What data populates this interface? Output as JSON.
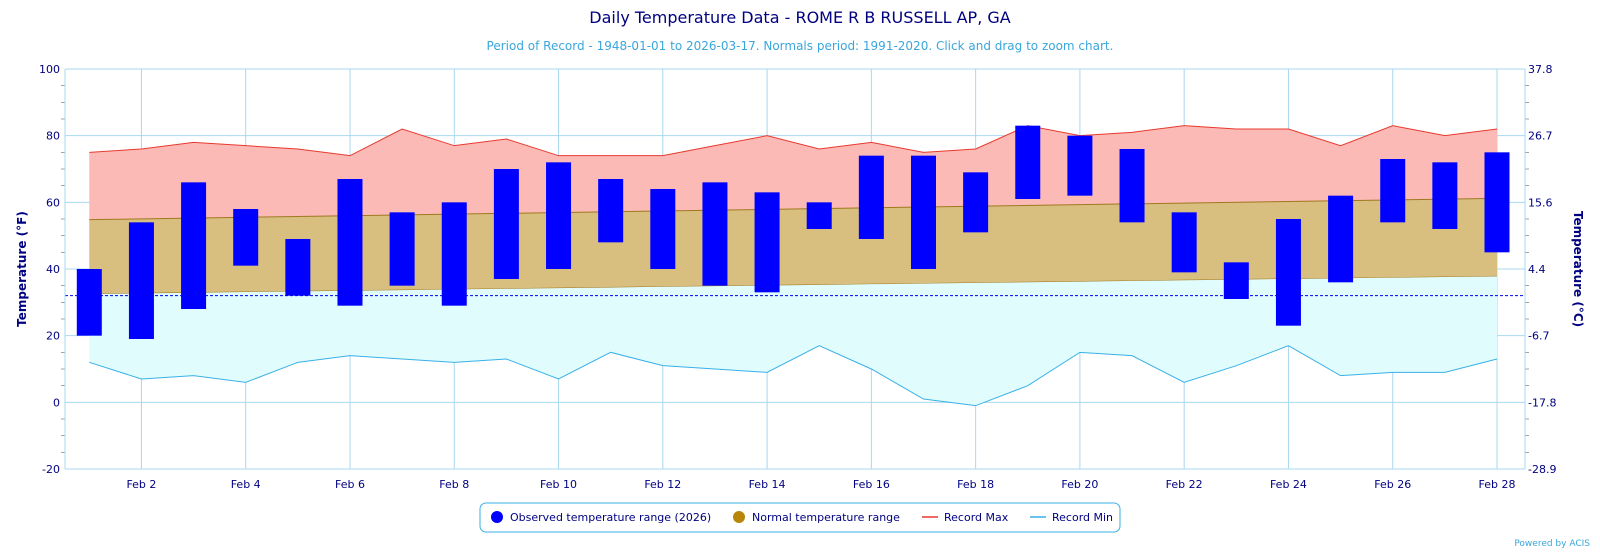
{
  "chart_data": {
    "type": "bar",
    "title": "Daily Temperature Data - ROME R B RUSSELL AP, GA",
    "subtitle": "Period of Record - 1948-01-01 to 2026-03-17. Normals period: 1991-2020. Click and drag to zoom chart.",
    "ylabel_left": "Temperature (°F)",
    "ylabel_right": "Temperature (°C)",
    "ylim": [
      -20,
      100
    ],
    "xlim": [
      1,
      28
    ],
    "yticks_left": [
      100,
      80,
      60,
      40,
      20,
      0,
      -20
    ],
    "yticks_right": [
      "37.8",
      "26.7",
      "15.6",
      "4.4",
      "-6.7",
      "-17.8",
      "-28.9"
    ],
    "x_tick_days": [
      2,
      4,
      6,
      8,
      10,
      12,
      14,
      16,
      18,
      20,
      22,
      24,
      26,
      28
    ],
    "x_tick_labels": [
      "Feb 2",
      "Feb 4",
      "Feb 6",
      "Feb 8",
      "Feb 10",
      "Feb 12",
      "Feb 14",
      "Feb 16",
      "Feb 18",
      "Feb 20",
      "Feb 22",
      "Feb 24",
      "Feb 26",
      "Feb 28"
    ],
    "freezing_line": 32,
    "grid": true,
    "legend_position": "bottom-center",
    "days": [
      1,
      2,
      3,
      4,
      5,
      6,
      7,
      8,
      9,
      10,
      11,
      12,
      13,
      14,
      15,
      16,
      17,
      18,
      19,
      20,
      21,
      22,
      23,
      24,
      25,
      26,
      27,
      28
    ],
    "observed_low": [
      20,
      19,
      28,
      41,
      32,
      29,
      35,
      29,
      37,
      40,
      48,
      40,
      35,
      33,
      52,
      49,
      40,
      51,
      61,
      62,
      54,
      39,
      31,
      23,
      36,
      54,
      52,
      45
    ],
    "observed_high": [
      40,
      54,
      66,
      58,
      49,
      67,
      57,
      60,
      70,
      72,
      67,
      64,
      66,
      63,
      60,
      74,
      74,
      69,
      83,
      80,
      76,
      57,
      42,
      55,
      62,
      73,
      72,
      75
    ],
    "normal_low_start": 32.5,
    "normal_low_end": 37.8,
    "normal_high_start": 54.8,
    "normal_high_end": 61.2,
    "record_max": [
      75,
      76,
      78,
      77,
      76,
      74,
      82,
      77,
      79,
      74,
      74,
      74,
      77,
      80,
      76,
      78,
      75,
      76,
      83,
      80,
      81,
      83,
      82,
      82,
      77,
      83,
      80,
      82
    ],
    "record_min": [
      12,
      7,
      8,
      6,
      12,
      14,
      13,
      12,
      13,
      7,
      15,
      11,
      10,
      9,
      17,
      10,
      1,
      -1,
      5,
      15,
      14,
      6,
      11,
      17,
      8,
      9,
      9,
      13
    ],
    "legend": [
      {
        "label": "Observed temperature range (2026)",
        "marker": "circle",
        "color": "#0000ff"
      },
      {
        "label": "Normal temperature range",
        "marker": "circle",
        "color": "#b8860b"
      },
      {
        "label": "Record Max",
        "marker": "line",
        "color": "#e8392e"
      },
      {
        "label": "Record Min",
        "marker": "line",
        "color": "#3ab0e8"
      }
    ],
    "colors": {
      "observed": "#0000ff",
      "normal_fill": "#d8bf80",
      "normal_edge": "#a07820",
      "record_max_line": "#e8392e",
      "record_max_fill": "#fbbab5",
      "record_min_line": "#3ab0e8",
      "record_min_fill": "#e0fcfc",
      "freezing_line": "#0000ee",
      "grid": "#a8d8f0",
      "text": "#000080"
    }
  },
  "credit": "Powered by ACIS"
}
